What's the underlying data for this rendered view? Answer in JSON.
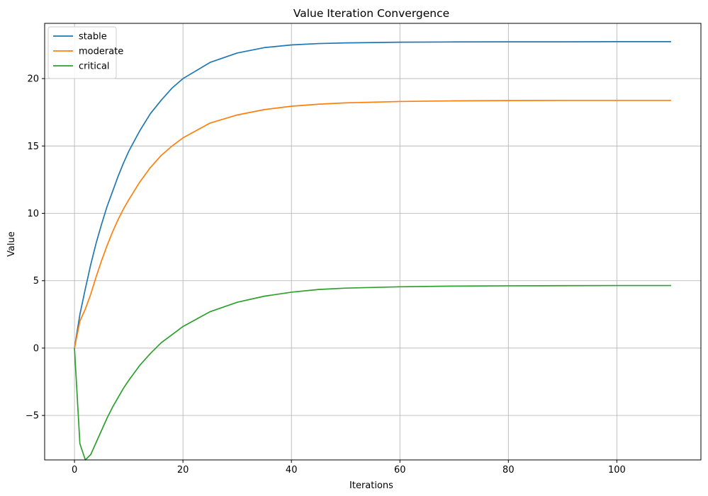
{
  "chart_data": {
    "type": "line",
    "title": "Value Iteration Convergence",
    "xlabel": "Iterations",
    "ylabel": "Value",
    "xlim": [
      -5.5,
      115.5
    ],
    "ylim": [
      -8.3,
      24.1
    ],
    "xticks": [
      0,
      20,
      40,
      60,
      80,
      100
    ],
    "xtick_labels": [
      "0",
      "20",
      "40",
      "60",
      "80",
      "100"
    ],
    "yticks": [
      -5,
      0,
      5,
      10,
      15,
      20
    ],
    "ytick_labels": [
      "−5",
      "0",
      "5",
      "10",
      "15",
      "20"
    ],
    "grid": true,
    "legend_position": "top-left",
    "series": [
      {
        "name": "stable",
        "color": "#1f77b4",
        "points": [
          [
            0,
            0
          ],
          [
            1,
            2.5
          ],
          [
            2,
            4.4
          ],
          [
            3,
            6.2
          ],
          [
            4,
            7.8
          ],
          [
            5,
            9.2
          ],
          [
            6,
            10.5
          ],
          [
            7,
            11.6
          ],
          [
            8,
            12.7
          ],
          [
            9,
            13.7
          ],
          [
            10,
            14.6
          ],
          [
            12,
            16.1
          ],
          [
            14,
            17.4
          ],
          [
            16,
            18.4
          ],
          [
            18,
            19.3
          ],
          [
            20,
            20.0
          ],
          [
            25,
            21.2
          ],
          [
            30,
            21.9
          ],
          [
            35,
            22.3
          ],
          [
            40,
            22.5
          ],
          [
            45,
            22.6
          ],
          [
            50,
            22.65
          ],
          [
            60,
            22.7
          ],
          [
            70,
            22.72
          ],
          [
            80,
            22.73
          ],
          [
            90,
            22.73
          ],
          [
            100,
            22.74
          ],
          [
            110,
            22.74
          ]
        ]
      },
      {
        "name": "moderate",
        "color": "#ff7f0e",
        "points": [
          [
            0,
            0
          ],
          [
            1,
            2.0
          ],
          [
            2,
            2.9
          ],
          [
            3,
            4.0
          ],
          [
            4,
            5.3
          ],
          [
            5,
            6.5
          ],
          [
            6,
            7.6
          ],
          [
            7,
            8.6
          ],
          [
            8,
            9.5
          ],
          [
            9,
            10.3
          ],
          [
            10,
            11.0
          ],
          [
            12,
            12.3
          ],
          [
            14,
            13.4
          ],
          [
            16,
            14.3
          ],
          [
            18,
            15.0
          ],
          [
            20,
            15.6
          ],
          [
            25,
            16.7
          ],
          [
            30,
            17.3
          ],
          [
            35,
            17.7
          ],
          [
            40,
            17.95
          ],
          [
            45,
            18.1
          ],
          [
            50,
            18.2
          ],
          [
            60,
            18.3
          ],
          [
            70,
            18.35
          ],
          [
            80,
            18.37
          ],
          [
            90,
            18.38
          ],
          [
            100,
            18.38
          ],
          [
            110,
            18.38
          ]
        ]
      },
      {
        "name": "critical",
        "color": "#2ca02c",
        "points": [
          [
            0,
            0
          ],
          [
            1,
            -7.1
          ],
          [
            2,
            -8.3
          ],
          [
            3,
            -7.9
          ],
          [
            4,
            -7.0
          ],
          [
            5,
            -6.1
          ],
          [
            6,
            -5.2
          ],
          [
            7,
            -4.4
          ],
          [
            8,
            -3.7
          ],
          [
            9,
            -3.0
          ],
          [
            10,
            -2.4
          ],
          [
            12,
            -1.3
          ],
          [
            14,
            -0.4
          ],
          [
            16,
            0.4
          ],
          [
            18,
            1.0
          ],
          [
            20,
            1.6
          ],
          [
            25,
            2.7
          ],
          [
            30,
            3.4
          ],
          [
            35,
            3.85
          ],
          [
            40,
            4.15
          ],
          [
            45,
            4.35
          ],
          [
            50,
            4.45
          ],
          [
            60,
            4.55
          ],
          [
            70,
            4.6
          ],
          [
            80,
            4.62
          ],
          [
            90,
            4.63
          ],
          [
            100,
            4.64
          ],
          [
            110,
            4.64
          ]
        ]
      }
    ]
  }
}
